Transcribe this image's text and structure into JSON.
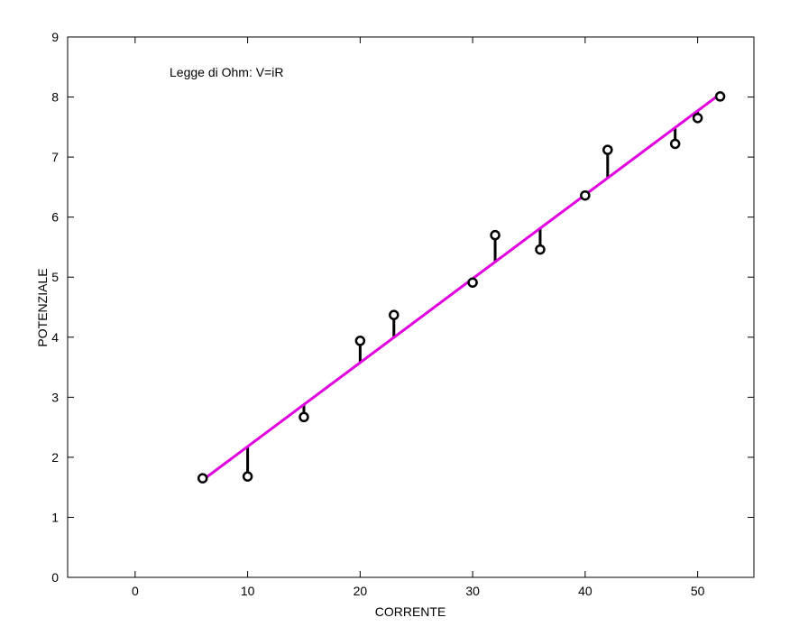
{
  "chart_data": {
    "type": "scatter",
    "title": "",
    "xlabel": "CORRENTE",
    "ylabel": "POTENZIALE",
    "annotation": "Legge di Ohm: V=iR",
    "xlim": [
      -6,
      55
    ],
    "ylim": [
      0,
      9
    ],
    "xticks": [
      0,
      10,
      20,
      30,
      40,
      50
    ],
    "yticks": [
      0,
      1,
      2,
      3,
      4,
      5,
      6,
      7,
      8,
      9
    ],
    "grid": false,
    "legend": "none",
    "series": [
      {
        "kind": "points",
        "marker": "circle",
        "color": "#000000",
        "x": [
          6,
          10,
          15,
          20,
          23,
          30,
          32,
          36,
          40,
          42,
          48,
          50,
          52
        ],
        "y": [
          1.65,
          1.68,
          2.67,
          3.94,
          4.37,
          4.91,
          5.7,
          5.46,
          6.36,
          7.12,
          7.22,
          7.65,
          8.01
        ]
      },
      {
        "kind": "fit-line",
        "color": "#e000e0",
        "x": [
          6,
          52
        ],
        "y": [
          1.62,
          8.05
        ]
      }
    ],
    "residuals": {
      "color": "#000000",
      "style": "vertical segments from point to fit line"
    }
  }
}
